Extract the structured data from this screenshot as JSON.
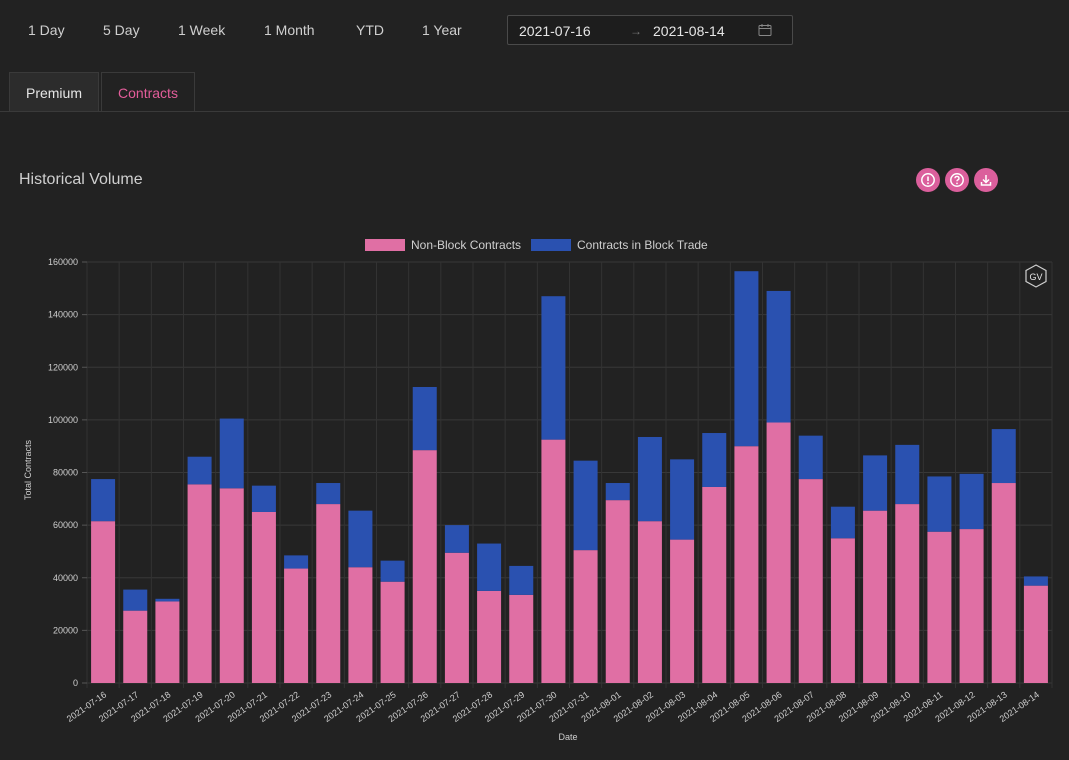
{
  "range_buttons": [
    "1 Day",
    "5 Day",
    "1 Week",
    "1 Month",
    "YTD",
    "1 Year"
  ],
  "date_range": {
    "start": "2021-07-16",
    "separator": "→",
    "end": "2021-08-14"
  },
  "tabs": {
    "premium": "Premium",
    "contracts": "Contracts"
  },
  "section": {
    "title": "Historical Volume"
  },
  "header_icons": [
    "info-icon",
    "help-icon",
    "download-icon"
  ],
  "watermark": "GV",
  "colors": {
    "non_block": "#e06fa4",
    "block": "#2a51b0",
    "accent": "#db5f9c",
    "active_tab": "#e35d9a"
  },
  "chart_data": {
    "type": "bar",
    "stacked": true,
    "categories": [
      "2021-07-16",
      "2021-07-17",
      "2021-07-18",
      "2021-07-19",
      "2021-07-20",
      "2021-07-21",
      "2021-07-22",
      "2021-07-23",
      "2021-07-24",
      "2021-07-25",
      "2021-07-26",
      "2021-07-27",
      "2021-07-28",
      "2021-07-29",
      "2021-07-30",
      "2021-07-31",
      "2021-08-01",
      "2021-08-02",
      "2021-08-03",
      "2021-08-04",
      "2021-08-05",
      "2021-08-06",
      "2021-08-07",
      "2021-08-08",
      "2021-08-09",
      "2021-08-10",
      "2021-08-11",
      "2021-08-12",
      "2021-08-13",
      "2021-08-14"
    ],
    "series": [
      {
        "name": "Non-Block Contracts",
        "values": [
          61500,
          27500,
          31000,
          75500,
          74000,
          65000,
          43500,
          68000,
          44000,
          38500,
          88500,
          49500,
          35000,
          33500,
          92500,
          50500,
          69500,
          61500,
          54500,
          74500,
          90000,
          99000,
          77500,
          55000,
          65500,
          68000,
          57500,
          58500,
          76000,
          37000
        ]
      },
      {
        "name": "Contracts in Block Trade",
        "values": [
          16000,
          8000,
          1000,
          10500,
          26500,
          10000,
          5000,
          8000,
          21500,
          8000,
          24000,
          10500,
          18000,
          11000,
          54500,
          34000,
          6500,
          32000,
          30500,
          20500,
          66500,
          50000,
          16500,
          12000,
          21000,
          22500,
          21000,
          21000,
          20500,
          3500
        ]
      }
    ],
    "xlabel": "Date",
    "ylabel": "Total Contracts",
    "ylim": [
      0,
      160000
    ],
    "yticks": [
      0,
      20000,
      40000,
      60000,
      80000,
      100000,
      120000,
      140000,
      160000
    ],
    "legend": "top-center",
    "grid": true
  }
}
